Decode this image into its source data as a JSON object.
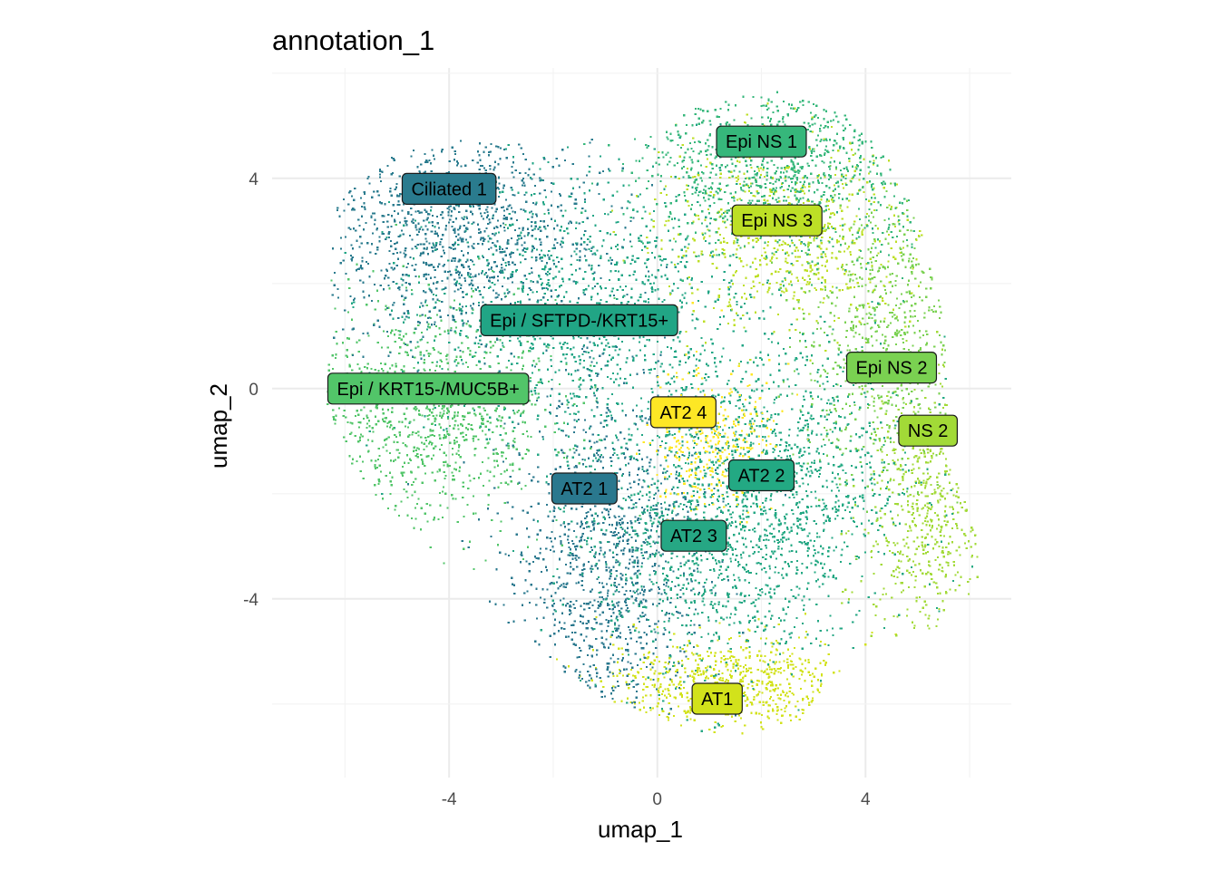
{
  "chart_data": {
    "type": "scatter",
    "title": "annotation_1",
    "xlabel": "umap_1",
    "ylabel": "umap_2",
    "xlim": [
      -7.4,
      6.8
    ],
    "ylim": [
      -7.4,
      6.1
    ],
    "x_ticks": [
      -4,
      0,
      4
    ],
    "y_ticks": [
      4,
      0,
      -4
    ],
    "grid": true,
    "legend": "none",
    "palette": "viridis",
    "clusters": [
      {
        "label": "Ciliated 1",
        "x": -4.0,
        "y": 3.8,
        "color": "#2a7b8e"
      },
      {
        "label": "Epi NS 1",
        "x": 2.0,
        "y": 4.7,
        "color": "#36b77b"
      },
      {
        "label": "Epi NS 3",
        "x": 2.3,
        "y": 3.2,
        "color": "#bddf26"
      },
      {
        "label": "Epi / SFTPD-/KRT15+",
        "x": -1.5,
        "y": 1.3,
        "color": "#21a585"
      },
      {
        "label": "Epi NS 2",
        "x": 4.5,
        "y": 0.4,
        "color": "#7ad151"
      },
      {
        "label": "Epi / KRT15-/MUC5B+",
        "x": -4.4,
        "y": 0.0,
        "color": "#52c569"
      },
      {
        "label": "AT2 4",
        "x": 0.5,
        "y": -0.45,
        "color": "#fde725"
      },
      {
        "label": "NS 2",
        "x": 5.2,
        "y": -0.8,
        "color": "#a2da37"
      },
      {
        "label": "AT2 2",
        "x": 2.0,
        "y": -1.65,
        "color": "#23a983"
      },
      {
        "label": "AT2 1",
        "x": -1.4,
        "y": -1.9,
        "color": "#2a788e"
      },
      {
        "label": "AT2 3",
        "x": 0.7,
        "y": -2.8,
        "color": "#26a784"
      },
      {
        "label": "AT1",
        "x": 1.15,
        "y": -5.9,
        "color": "#d2e21b"
      }
    ],
    "cloud_regions": [
      {
        "cluster": "Ciliated 1",
        "cx": -4.0,
        "cy": 3.0,
        "sx": 1.4,
        "sy": 1.0,
        "weight": 0.1
      },
      {
        "cluster": "Epi NS 1",
        "cx": 2.5,
        "cy": 4.2,
        "sx": 1.5,
        "sy": 0.9,
        "weight": 0.09
      },
      {
        "cluster": "Epi NS 3",
        "cx": 2.5,
        "cy": 3.0,
        "sx": 1.2,
        "sy": 0.9,
        "weight": 0.06
      },
      {
        "cluster": "Epi / SFTPD-/KRT15+",
        "cx": -1.5,
        "cy": 1.5,
        "sx": 1.7,
        "sy": 1.3,
        "weight": 0.1
      },
      {
        "cluster": "Epi NS 2",
        "cx": 4.3,
        "cy": 1.0,
        "sx": 0.8,
        "sy": 1.3,
        "weight": 0.06
      },
      {
        "cluster": "Epi / KRT15-/MUC5B+",
        "cx": -4.5,
        "cy": -0.5,
        "sx": 1.3,
        "sy": 1.1,
        "weight": 0.09
      },
      {
        "cluster": "AT2 4",
        "cx": 1.0,
        "cy": -1.0,
        "sx": 0.6,
        "sy": 0.7,
        "weight": 0.03
      },
      {
        "cluster": "NS 2",
        "cx": 5.2,
        "cy": -2.2,
        "sx": 0.6,
        "sy": 1.4,
        "weight": 0.06
      },
      {
        "cluster": "AT2 2",
        "cx": 2.3,
        "cy": -1.6,
        "sx": 1.3,
        "sy": 1.3,
        "weight": 0.09
      },
      {
        "cluster": "AT2 1",
        "cx": -1.0,
        "cy": -3.3,
        "sx": 0.9,
        "sy": 1.6,
        "weight": 0.1
      },
      {
        "cluster": "AT2 3",
        "cx": 1.0,
        "cy": -3.0,
        "sx": 1.3,
        "sy": 1.2,
        "weight": 0.08
      },
      {
        "cluster": "AT1",
        "cx": 1.5,
        "cy": -5.6,
        "sx": 1.3,
        "sy": 0.45,
        "weight": 0.06
      }
    ]
  }
}
